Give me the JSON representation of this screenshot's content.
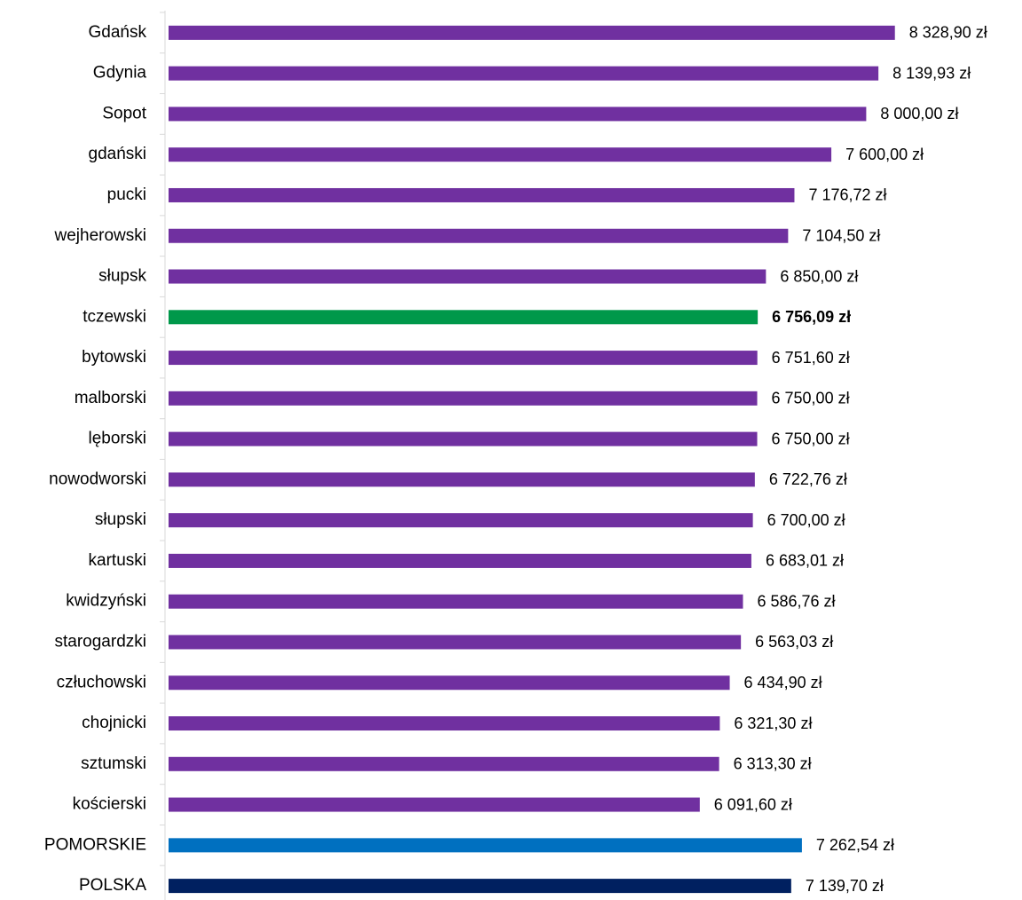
{
  "chart_data": {
    "type": "barh",
    "categories": [
      "Gdańsk",
      "Gdynia",
      "Sopot",
      "gdański",
      "pucki",
      "wejherowski",
      "słupsk",
      "tczewski",
      "bytowski",
      "malborski",
      "lęborski",
      "nowodworski",
      "słupski",
      "kartuski",
      "kwidzyński",
      "starogardzki",
      "człuchowski",
      "chojnicki",
      "sztumski",
      "kościerski",
      "POMORSKIE",
      "POLSKA"
    ],
    "values": [
      8328.9,
      8139.93,
      8000.0,
      7600.0,
      7176.72,
      7104.5,
      6850.0,
      6756.09,
      6751.6,
      6750.0,
      6750.0,
      6722.76,
      6700.0,
      6683.01,
      6586.76,
      6563.03,
      6434.9,
      6321.3,
      6313.3,
      6091.6,
      7262.54,
      7139.7
    ],
    "value_labels": [
      "8 328,90 zł",
      "8 139,93 zł",
      "8 000,00 zł",
      "7 600,00 zł",
      "7 176,72 zł",
      "7 104,50 zł",
      "6 850,00 zł",
      "6 756,09 zł",
      "6 751,60 zł",
      "6 750,00 zł",
      "6 750,00 zł",
      "6 722,76 zł",
      "6 700,00 zł",
      "6 683,01 zł",
      "6 586,76 zł",
      "6 563,03 zł",
      "6 434,90 zł",
      "6 321,30 zł",
      "6 313,30 zł",
      "6 091,60 zł",
      "7 262,54 zł",
      "7 139,70 zł"
    ],
    "colors": [
      "#7030a0",
      "#7030a0",
      "#7030a0",
      "#7030a0",
      "#7030a0",
      "#7030a0",
      "#7030a0",
      "#00984a",
      "#7030a0",
      "#7030a0",
      "#7030a0",
      "#7030a0",
      "#7030a0",
      "#7030a0",
      "#7030a0",
      "#7030a0",
      "#7030a0",
      "#7030a0",
      "#7030a0",
      "#7030a0",
      "#0070c0",
      "#002060"
    ],
    "highlight": "tczewski",
    "xlim": [
      0,
      9000
    ]
  }
}
